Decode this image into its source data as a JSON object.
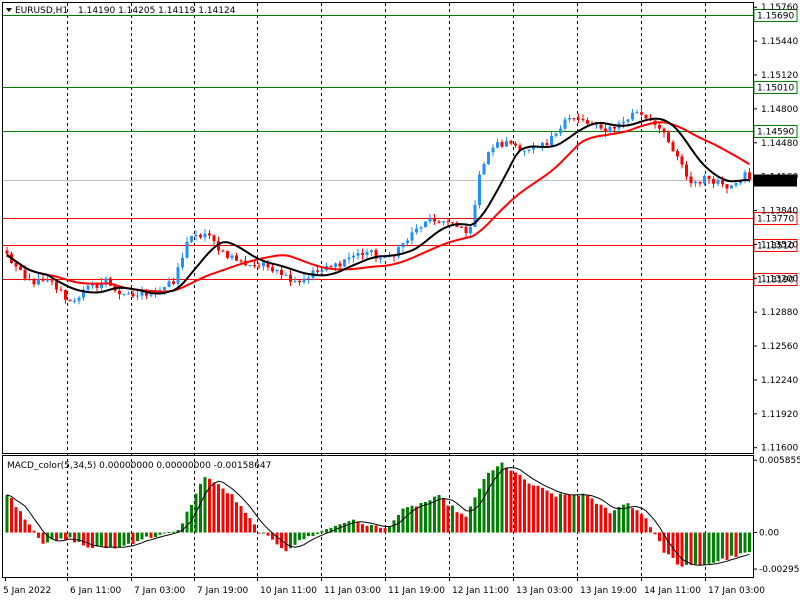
{
  "header": {
    "symbol": "EURUSD,H1",
    "ohlc": "1.14190 1.14205 1.14119 1.14124"
  },
  "macd": {
    "label": "MACD_color(5,34,5) 0.00000000 0.00000000 -0.00158647",
    "ticks": [
      "0.0058559",
      "0.00",
      "-0.002959"
    ],
    "range": [
      -0.0036,
      0.0062
    ],
    "pos_color": "#008000",
    "neg_color": "#ff0000",
    "signal_color": "#000000"
  },
  "chart_data": {
    "type": "candlestick",
    "symbol": "EURUSD",
    "timeframe": "H1",
    "ylim": [
      1.1155,
      1.158
    ],
    "yticks": [
      "1.15760",
      "1.15440",
      "1.15120",
      "1.14800",
      "1.14480",
      "1.14160",
      "1.13840",
      "1.13520",
      "1.13200",
      "1.12880",
      "1.12560",
      "1.12240",
      "1.11920",
      "1.11600"
    ],
    "xticks": [
      "5 Jan 2022",
      "6 Jan 11:00",
      "7 Jan 03:00",
      "7 Jan 19:00",
      "10 Jan 11:00",
      "11 Jan 03:00",
      "11 Jan 19:00",
      "12 Jan 11:00",
      "13 Jan 03:00",
      "13 Jan 19:00",
      "14 Jan 11:00",
      "17 Jan 03:00"
    ],
    "last_price": "1.14124",
    "level_lines": [
      {
        "value": 1.1569,
        "label": "1.15690",
        "color": "#008000"
      },
      {
        "value": 1.1501,
        "label": "1.15010",
        "color": "#008000"
      },
      {
        "value": 1.1459,
        "label": "1.14590",
        "color": "#008000"
      },
      {
        "value": 1.1377,
        "label": "1.13770",
        "color": "#ff0000"
      },
      {
        "value": 1.1351,
        "label": "1.13510",
        "color": "#ff0000"
      },
      {
        "value": 1.1319,
        "label": "1.13190",
        "color": "#ff0000"
      }
    ],
    "bull_color": "#1e90ff",
    "bear_color": "#ff0000",
    "ma_fast_color": "#000000",
    "ma_slow_color": "#ff0000",
    "anchors": [
      [
        0,
        1.1342
      ],
      [
        4,
        1.1318
      ],
      [
        10,
        1.1315
      ],
      [
        14,
        1.1298
      ],
      [
        18,
        1.131
      ],
      [
        22,
        1.1318
      ],
      [
        26,
        1.1302
      ],
      [
        30,
        1.1305
      ],
      [
        34,
        1.131
      ],
      [
        37,
        1.1315
      ],
      [
        40,
        1.1355
      ],
      [
        44,
        1.1362
      ],
      [
        48,
        1.1345
      ],
      [
        52,
        1.1335
      ],
      [
        56,
        1.1332
      ],
      [
        60,
        1.133
      ],
      [
        62,
        1.1322
      ],
      [
        65,
        1.1318
      ],
      [
        68,
        1.1325
      ],
      [
        72,
        1.133
      ],
      [
        76,
        1.134
      ],
      [
        80,
        1.1345
      ],
      [
        84,
        1.1337
      ],
      [
        88,
        1.1352
      ],
      [
        92,
        1.137
      ],
      [
        96,
        1.1375
      ],
      [
        100,
        1.1368
      ],
      [
        103,
        1.1365
      ],
      [
        105,
        1.142
      ],
      [
        108,
        1.1445
      ],
      [
        112,
        1.1448
      ],
      [
        116,
        1.144
      ],
      [
        120,
        1.1445
      ],
      [
        124,
        1.1472
      ],
      [
        128,
        1.1468
      ],
      [
        132,
        1.146
      ],
      [
        136,
        1.1465
      ],
      [
        140,
        1.1478
      ],
      [
        144,
        1.1468
      ],
      [
        148,
        1.144
      ],
      [
        152,
        1.141
      ],
      [
        156,
        1.1415
      ],
      [
        160,
        1.1408
      ],
      [
        164,
        1.1418
      ],
      [
        165,
        1.1413
      ]
    ],
    "macd_anchors": [
      [
        0,
        0.0032
      ],
      [
        8,
        -0.0008
      ],
      [
        14,
        -0.0005
      ],
      [
        18,
        -0.0012
      ],
      [
        25,
        -0.0012
      ],
      [
        30,
        -0.0005
      ],
      [
        38,
        0.0001
      ],
      [
        44,
        0.0046
      ],
      [
        50,
        0.003
      ],
      [
        56,
        0.0001
      ],
      [
        62,
        -0.0014
      ],
      [
        66,
        -0.0005
      ],
      [
        76,
        0.001
      ],
      [
        84,
        0.0003
      ],
      [
        88,
        0.0018
      ],
      [
        96,
        0.0029
      ],
      [
        102,
        0.0012
      ],
      [
        106,
        0.0044
      ],
      [
        110,
        0.0056
      ],
      [
        116,
        0.004
      ],
      [
        122,
        0.003
      ],
      [
        128,
        0.0031
      ],
      [
        134,
        0.0017
      ],
      [
        138,
        0.0024
      ],
      [
        142,
        0.0012
      ],
      [
        146,
        -0.0015
      ],
      [
        150,
        -0.0028
      ],
      [
        156,
        -0.0025
      ],
      [
        162,
        -0.0019
      ],
      [
        165,
        -0.0016
      ]
    ]
  }
}
